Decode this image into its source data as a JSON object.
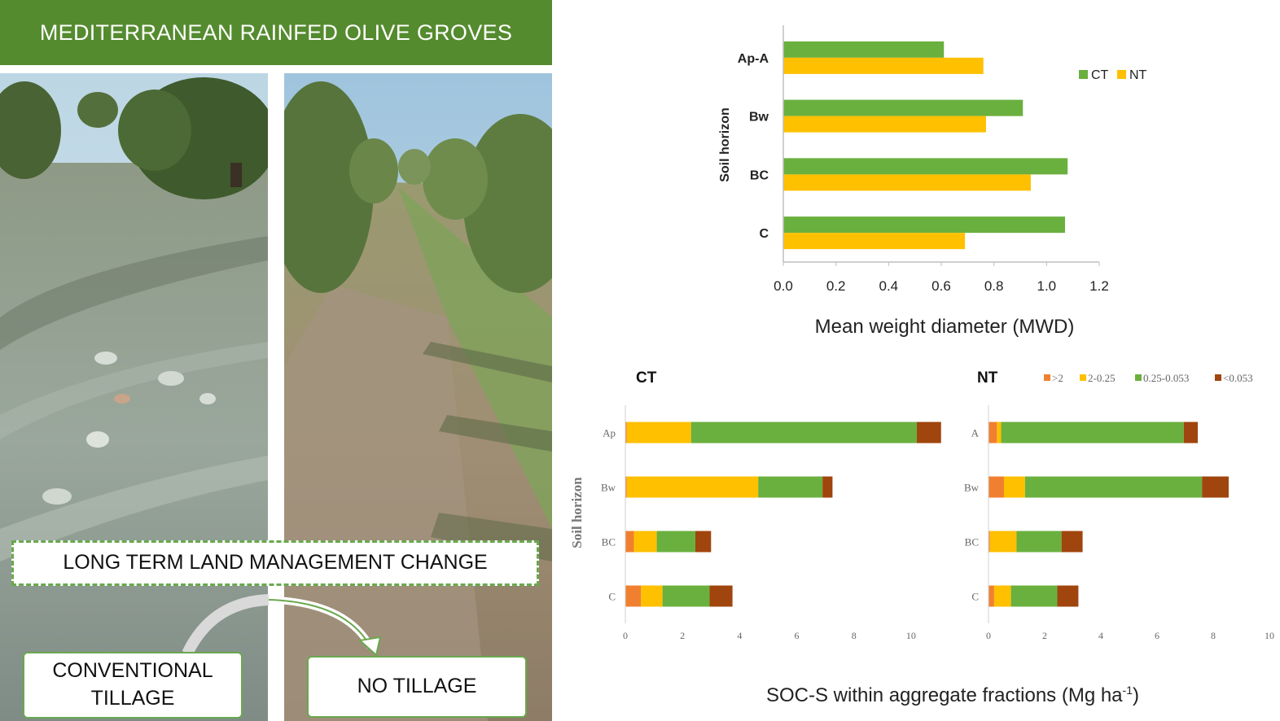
{
  "banner_title": "MEDITERRANEAN RAINFED OLIVE GROVES",
  "center_label": "LONG TERM LAND MANAGEMENT CHANGE",
  "left_label_line1": "CONVENTIONAL",
  "left_label_line2": "TILLAGE",
  "right_label": "NO TILLAGE",
  "colors": {
    "banner": "#558b2f",
    "CT": "#6ab03e",
    "NT": "#ffc000",
    "frac_gt2": "#f08030",
    "frac_2_025": "#ffc000",
    "frac_025_0053": "#6ab03e",
    "frac_lt0053": "#a0450e"
  },
  "chart_data": [
    {
      "type": "bar",
      "orientation": "horizontal",
      "categories": [
        "Ap-A",
        "Bw",
        "BC",
        "C"
      ],
      "series": [
        {
          "name": "CT",
          "values": [
            0.61,
            0.91,
            1.08,
            1.07
          ]
        },
        {
          "name": "NT",
          "values": [
            0.76,
            0.77,
            0.94,
            0.69
          ]
        }
      ],
      "xticks": [
        "0.0",
        "0.2",
        "0.4",
        "0.6",
        "0.8",
        "1.0",
        "1.2"
      ],
      "xlim": [
        0,
        1.2
      ],
      "xlabel": "Mean weight diameter (MWD)",
      "ylabel": "Soil horizon",
      "legend": "top-right",
      "grid": false
    },
    {
      "type": "bar",
      "orientation": "horizontal",
      "stacked": true,
      "title": "CT",
      "categories": [
        "Ap",
        "Bw",
        "BC",
        "C"
      ],
      "series": [
        {
          "name": ">2",
          "values": [
            0.05,
            0.05,
            0.3,
            0.55
          ]
        },
        {
          "name": "2-0.25",
          "values": [
            2.25,
            4.6,
            0.8,
            0.75
          ]
        },
        {
          "name": "0.25-0.053",
          "values": [
            7.9,
            2.25,
            1.35,
            1.65
          ]
        },
        {
          "name": "<0.053",
          "values": [
            0.85,
            0.35,
            0.55,
            0.8
          ]
        }
      ],
      "xticks": [
        "0",
        "2",
        "4",
        "6",
        "8",
        "10"
      ],
      "xlim": [
        0,
        11
      ],
      "ylabel": "Soil horizon",
      "grid": false
    },
    {
      "type": "bar",
      "orientation": "horizontal",
      "stacked": true,
      "title": "NT",
      "categories": [
        "A",
        "Bw",
        "BC",
        "C"
      ],
      "series": [
        {
          "name": ">2",
          "values": [
            0.3,
            0.55,
            0.05,
            0.2
          ]
        },
        {
          "name": "2-0.25",
          "values": [
            0.15,
            0.75,
            0.95,
            0.6
          ]
        },
        {
          "name": "0.25-0.053",
          "values": [
            6.5,
            6.3,
            1.6,
            1.65
          ]
        },
        {
          "name": "<0.053",
          "values": [
            0.5,
            0.95,
            0.75,
            0.75
          ]
        }
      ],
      "xticks": [
        "0",
        "2",
        "4",
        "6",
        "8",
        "10"
      ],
      "xlim": [
        0,
        10
      ],
      "legend": "top-right",
      "grid": false
    }
  ],
  "soc_axis_label": "SOC-S within aggregate fractions (Mg ha",
  "soc_axis_sup": "-1",
  "soc_axis_tail": ")"
}
